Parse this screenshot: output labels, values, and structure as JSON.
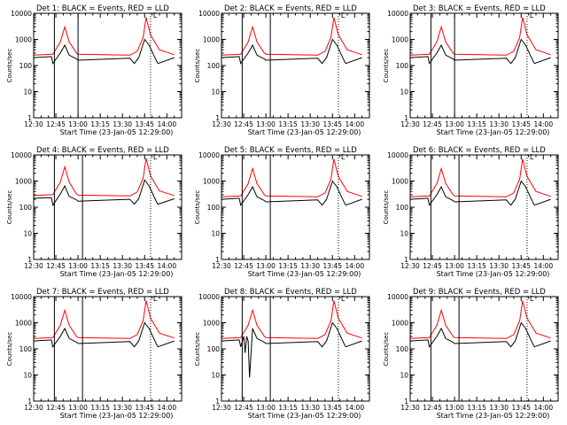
{
  "chart_data": [
    {
      "type": "line",
      "title": "Det 1:  BLACK = Events,  RED = LLD",
      "xlabel": "Start Time (23-Jan-05 12:29:00)",
      "ylabel": "Counts/sec",
      "xlim": [
        "12:30",
        "14:10"
      ],
      "ylim": [
        1,
        10000
      ],
      "y_scale": "log",
      "x_ticks": [
        "12:30",
        "12:45",
        "13:00",
        "13:15",
        "13:30",
        "13:45",
        "14:00"
      ],
      "y_ticks": [
        "1",
        "10",
        "100",
        "1000",
        "10000"
      ],
      "marker_lines": {
        "solid": [
          "12:44",
          "13:00"
        ],
        "dotted": [
          "13:49"
        ]
      },
      "legend_marker": "Ľ",
      "series": [
        {
          "name": "LLD",
          "color": "#ff0000",
          "x": [
            "12:30",
            "12:43",
            "12:48",
            "12:51",
            "12:54",
            "12:59",
            "13:00",
            "13:35",
            "13:40",
            "13:44",
            "13:46",
            "13:49",
            "13:55",
            "14:05"
          ],
          "values": [
            250,
            270,
            800,
            3000,
            800,
            300,
            270,
            250,
            350,
            1200,
            7000,
            1500,
            400,
            260
          ]
        },
        {
          "name": "Events",
          "color": "#000000",
          "x": [
            "12:30",
            "12:42",
            "12:43",
            "12:48",
            "12:51",
            "12:54",
            "12:59",
            "13:00",
            "13:35",
            "13:38",
            "13:41",
            "13:45",
            "13:48",
            "13:53",
            "13:54",
            "14:05"
          ],
          "values": [
            200,
            220,
            120,
            300,
            600,
            250,
            180,
            160,
            190,
            120,
            200,
            1000,
            600,
            150,
            120,
            200
          ]
        }
      ]
    },
    {
      "type": "line",
      "title": "Det 2:  BLACK = Events,  RED = LLD",
      "xlabel": "Start Time (23-Jan-05 12:29:00)",
      "ylabel": "Counts/sec",
      "xlim": [
        "12:30",
        "14:10"
      ],
      "ylim": [
        1,
        10000
      ],
      "y_scale": "log",
      "x_ticks": [
        "12:30",
        "12:45",
        "13:00",
        "13:15",
        "13:30",
        "13:45",
        "14:00"
      ],
      "y_ticks": [
        "1",
        "10",
        "100",
        "1000",
        "10000"
      ],
      "marker_lines": {
        "solid": [
          "12:44",
          "13:03"
        ],
        "dotted": [
          "13:49"
        ]
      },
      "legend_marker": "Ľ",
      "series": [
        {
          "name": "LLD",
          "color": "#ff0000",
          "x": [
            "12:30",
            "12:43",
            "12:48",
            "12:51",
            "12:54",
            "12:59",
            "13:00",
            "13:35",
            "13:40",
            "13:44",
            "13:46",
            "13:49",
            "13:55",
            "14:05"
          ],
          "values": [
            250,
            270,
            800,
            3000,
            800,
            300,
            270,
            250,
            350,
            1200,
            7000,
            1500,
            400,
            260
          ]
        },
        {
          "name": "Events",
          "color": "#000000",
          "x": [
            "12:30",
            "12:42",
            "12:43",
            "12:48",
            "12:51",
            "12:54",
            "12:59",
            "13:00",
            "13:35",
            "13:38",
            "13:41",
            "13:45",
            "13:48",
            "13:53",
            "13:54",
            "14:05"
          ],
          "values": [
            200,
            220,
            120,
            300,
            600,
            250,
            180,
            160,
            190,
            120,
            200,
            1000,
            600,
            150,
            120,
            200
          ]
        }
      ]
    },
    {
      "type": "line",
      "title": "Det 3:  BLACK = Events,  RED = LLD",
      "xlabel": "Start Time (23-Jan-05 12:29:00)",
      "ylabel": "Counts/sec",
      "xlim": [
        "12:30",
        "14:10"
      ],
      "ylim": [
        1,
        10000
      ],
      "y_scale": "log",
      "x_ticks": [
        "12:30",
        "12:45",
        "13:00",
        "13:15",
        "13:30",
        "13:45",
        "14:00"
      ],
      "y_ticks": [
        "1",
        "10",
        "100",
        "1000",
        "10000"
      ],
      "marker_lines": {
        "solid": [
          "12:44",
          "13:00"
        ],
        "dotted": [
          "13:49"
        ]
      },
      "legend_marker": "Ľ",
      "series": [
        {
          "name": "LLD",
          "color": "#ff0000",
          "x": [
            "12:30",
            "12:43",
            "12:48",
            "12:51",
            "12:54",
            "12:59",
            "13:00",
            "13:35",
            "13:40",
            "13:44",
            "13:46",
            "13:49",
            "13:55",
            "14:05"
          ],
          "values": [
            250,
            270,
            800,
            3000,
            800,
            300,
            270,
            250,
            350,
            1200,
            7000,
            1500,
            400,
            260
          ]
        },
        {
          "name": "Events",
          "color": "#000000",
          "x": [
            "12:30",
            "12:42",
            "12:43",
            "12:48",
            "12:51",
            "12:54",
            "12:59",
            "13:00",
            "13:35",
            "13:38",
            "13:41",
            "13:45",
            "13:48",
            "13:53",
            "13:54",
            "14:05"
          ],
          "values": [
            200,
            220,
            120,
            300,
            600,
            250,
            180,
            160,
            190,
            120,
            200,
            1000,
            600,
            150,
            120,
            200
          ]
        }
      ]
    },
    {
      "type": "line",
      "title": "Det 4:  BLACK = Events,  RED = LLD",
      "xlabel": "Start Time (23-Jan-05 12:29:00)",
      "ylabel": "Counts/sec",
      "xlim": [
        "12:30",
        "14:10"
      ],
      "ylim": [
        1,
        10000
      ],
      "y_scale": "log",
      "x_ticks": [
        "12:30",
        "12:45",
        "13:00",
        "13:15",
        "13:30",
        "13:45",
        "14:00"
      ],
      "y_ticks": [
        "1",
        "10",
        "100",
        "1000",
        "10000"
      ],
      "marker_lines": {
        "solid": [
          "12:44",
          "13:03"
        ],
        "dotted": [
          "13:49"
        ]
      },
      "legend_marker": "Ľ",
      "series": [
        {
          "name": "LLD",
          "color": "#ff0000",
          "x": [
            "12:30",
            "12:43",
            "12:48",
            "12:51",
            "12:54",
            "12:59",
            "13:00",
            "13:35",
            "13:40",
            "13:44",
            "13:46",
            "13:49",
            "13:55",
            "14:05"
          ],
          "values": [
            280,
            300,
            900,
            3500,
            900,
            320,
            290,
            270,
            380,
            1300,
            7500,
            1600,
            420,
            280
          ]
        },
        {
          "name": "Events",
          "color": "#000000",
          "x": [
            "12:30",
            "12:42",
            "12:43",
            "12:48",
            "12:51",
            "12:54",
            "12:59",
            "13:00",
            "13:35",
            "13:38",
            "13:41",
            "13:45",
            "13:48",
            "13:53",
            "13:54",
            "14:05"
          ],
          "values": [
            220,
            230,
            120,
            320,
            650,
            260,
            190,
            170,
            200,
            130,
            210,
            1100,
            650,
            160,
            130,
            210
          ]
        }
      ]
    },
    {
      "type": "line",
      "title": "Det 5:  BLACK = Events,  RED = LLD",
      "xlabel": "Start Time (23-Jan-05 12:29:00)",
      "ylabel": "Counts/sec",
      "xlim": [
        "12:30",
        "14:10"
      ],
      "ylim": [
        1,
        10000
      ],
      "y_scale": "log",
      "x_ticks": [
        "12:30",
        "12:45",
        "13:00",
        "13:15",
        "13:30",
        "13:45",
        "14:00"
      ],
      "y_ticks": [
        "1",
        "10",
        "100",
        "1000",
        "10000"
      ],
      "marker_lines": {
        "solid": [
          "12:44",
          "13:03"
        ],
        "dotted": [
          "13:49"
        ]
      },
      "legend_marker": "Ľ",
      "series": [
        {
          "name": "LLD",
          "color": "#ff0000",
          "x": [
            "12:30",
            "12:43",
            "12:48",
            "12:51",
            "12:54",
            "12:59",
            "13:00",
            "13:35",
            "13:40",
            "13:44",
            "13:46",
            "13:49",
            "13:55",
            "14:05"
          ],
          "values": [
            250,
            270,
            800,
            3000,
            800,
            300,
            270,
            250,
            350,
            1200,
            7000,
            1500,
            400,
            260
          ]
        },
        {
          "name": "Events",
          "color": "#000000",
          "x": [
            "12:30",
            "12:42",
            "12:43",
            "12:48",
            "12:51",
            "12:54",
            "12:59",
            "13:00",
            "13:35",
            "13:38",
            "13:41",
            "13:45",
            "13:48",
            "13:53",
            "13:54",
            "14:05"
          ],
          "values": [
            200,
            220,
            120,
            300,
            600,
            250,
            180,
            160,
            190,
            120,
            200,
            1000,
            600,
            150,
            120,
            200
          ]
        }
      ]
    },
    {
      "type": "line",
      "title": "Det 6:  BLACK = Events,  RED = LLD",
      "xlabel": "Start Time (23-Jan-05 12:29:00)",
      "ylabel": "Counts/sec",
      "xlim": [
        "12:30",
        "14:10"
      ],
      "ylim": [
        1,
        10000
      ],
      "y_scale": "log",
      "x_ticks": [
        "12:30",
        "12:45",
        "13:00",
        "13:15",
        "13:30",
        "13:45",
        "14:00"
      ],
      "y_ticks": [
        "1",
        "10",
        "100",
        "1000",
        "10000"
      ],
      "marker_lines": {
        "solid": [
          "12:44",
          "13:03"
        ],
        "dotted": [
          "13:49"
        ]
      },
      "legend_marker": "Ľ",
      "series": [
        {
          "name": "LLD",
          "color": "#ff0000",
          "x": [
            "12:30",
            "12:43",
            "12:48",
            "12:51",
            "12:54",
            "12:59",
            "13:00",
            "13:35",
            "13:40",
            "13:44",
            "13:46",
            "13:49",
            "13:55",
            "14:05"
          ],
          "values": [
            250,
            270,
            800,
            3000,
            800,
            300,
            270,
            250,
            350,
            1200,
            7000,
            1500,
            400,
            260
          ]
        },
        {
          "name": "Events",
          "color": "#000000",
          "x": [
            "12:30",
            "12:42",
            "12:43",
            "12:48",
            "12:51",
            "12:54",
            "12:59",
            "13:00",
            "13:35",
            "13:38",
            "13:41",
            "13:45",
            "13:48",
            "13:53",
            "13:54",
            "14:05"
          ],
          "values": [
            200,
            220,
            120,
            300,
            600,
            250,
            180,
            160,
            190,
            120,
            200,
            1000,
            600,
            150,
            120,
            200
          ]
        }
      ]
    },
    {
      "type": "line",
      "title": "Det 7:  BLACK = Events,  RED = LLD",
      "xlabel": "Start Time (23-Jan-05 12:29:00)",
      "ylabel": "Counts/sec",
      "xlim": [
        "12:30",
        "14:10"
      ],
      "ylim": [
        1,
        10000
      ],
      "y_scale": "log",
      "x_ticks": [
        "12:30",
        "12:45",
        "13:00",
        "13:15",
        "13:30",
        "13:45",
        "14:00"
      ],
      "y_ticks": [
        "1",
        "10",
        "100",
        "1000",
        "10000"
      ],
      "marker_lines": {
        "solid": [
          "12:44",
          "13:03"
        ],
        "dotted": [
          "13:49"
        ]
      },
      "legend_marker": "Ľ",
      "series": [
        {
          "name": "LLD",
          "color": "#ff0000",
          "x": [
            "12:30",
            "12:43",
            "12:48",
            "12:51",
            "12:54",
            "12:59",
            "13:00",
            "13:35",
            "13:40",
            "13:44",
            "13:46",
            "13:49",
            "13:55",
            "14:05"
          ],
          "values": [
            250,
            270,
            800,
            3000,
            800,
            300,
            270,
            250,
            350,
            1200,
            7000,
            1500,
            400,
            260
          ]
        },
        {
          "name": "Events",
          "color": "#000000",
          "x": [
            "12:30",
            "12:42",
            "12:43",
            "12:48",
            "12:51",
            "12:54",
            "12:59",
            "13:00",
            "13:35",
            "13:38",
            "13:41",
            "13:45",
            "13:48",
            "13:53",
            "13:54",
            "14:05"
          ],
          "values": [
            200,
            220,
            120,
            300,
            600,
            250,
            180,
            160,
            190,
            120,
            200,
            1000,
            600,
            150,
            120,
            200
          ]
        }
      ]
    },
    {
      "type": "line",
      "title": "Det 8:  BLACK = Events,  RED = LLD",
      "xlabel": "Start Time (23-Jan-05 12:29:00)",
      "ylabel": "Counts/sec",
      "xlim": [
        "12:30",
        "14:10"
      ],
      "ylim": [
        1,
        10000
      ],
      "y_scale": "log",
      "x_ticks": [
        "12:30",
        "12:45",
        "13:00",
        "13:15",
        "13:30",
        "13:45",
        "14:00"
      ],
      "y_ticks": [
        "1",
        "10",
        "100",
        "1000",
        "10000"
      ],
      "marker_lines": {
        "solid": [
          "12:44",
          "13:03"
        ],
        "dotted": [
          "13:49"
        ]
      },
      "legend_marker": "Ľ",
      "series": [
        {
          "name": "LLD",
          "color": "#ff0000",
          "x": [
            "12:30",
            "12:43",
            "12:48",
            "12:51",
            "12:54",
            "12:59",
            "13:00",
            "13:35",
            "13:40",
            "13:44",
            "13:46",
            "13:49",
            "13:55",
            "14:05"
          ],
          "values": [
            250,
            270,
            800,
            3000,
            800,
            300,
            270,
            250,
            350,
            1200,
            7000,
            1500,
            400,
            260
          ]
        },
        {
          "name": "Events",
          "color": "#000000",
          "x": [
            "12:30",
            "12:42",
            "12:43",
            "12:45",
            "12:46",
            "12:47",
            "12:48",
            "12:49",
            "12:51",
            "12:54",
            "12:59",
            "13:00",
            "13:35",
            "13:38",
            "13:41",
            "13:45",
            "13:48",
            "13:53",
            "13:54",
            "14:05"
          ],
          "values": [
            200,
            220,
            120,
            300,
            70,
            300,
            200,
            8,
            600,
            250,
            180,
            160,
            190,
            120,
            200,
            1000,
            600,
            150,
            120,
            200
          ]
        }
      ]
    },
    {
      "type": "line",
      "title": "Det 9:  BLACK = Events,  RED = LLD",
      "xlabel": "Start Time (23-Jan-05 12:29:00)",
      "ylabel": "Counts/sec",
      "xlim": [
        "12:30",
        "14:10"
      ],
      "ylim": [
        1,
        10000
      ],
      "y_scale": "log",
      "x_ticks": [
        "12:30",
        "12:45",
        "13:00",
        "13:15",
        "13:30",
        "13:45",
        "14:00"
      ],
      "y_ticks": [
        "1",
        "10",
        "100",
        "1000",
        "10000"
      ],
      "marker_lines": {
        "solid": [
          "12:44",
          "13:03"
        ],
        "dotted": [
          "13:49"
        ]
      },
      "legend_marker": "Ľ",
      "series": [
        {
          "name": "LLD",
          "color": "#ff0000",
          "x": [
            "12:30",
            "12:43",
            "12:48",
            "12:51",
            "12:54",
            "12:59",
            "13:00",
            "13:35",
            "13:40",
            "13:44",
            "13:46",
            "13:49",
            "13:55",
            "14:05"
          ],
          "values": [
            250,
            270,
            800,
            3000,
            800,
            300,
            270,
            250,
            350,
            1200,
            7000,
            1500,
            400,
            260
          ]
        },
        {
          "name": "Events",
          "color": "#000000",
          "x": [
            "12:30",
            "12:42",
            "12:43",
            "12:48",
            "12:51",
            "12:54",
            "12:59",
            "13:00",
            "13:35",
            "13:38",
            "13:41",
            "13:45",
            "13:48",
            "13:53",
            "13:54",
            "14:05"
          ],
          "values": [
            200,
            220,
            120,
            300,
            600,
            250,
            180,
            160,
            190,
            120,
            200,
            1000,
            600,
            150,
            120,
            200
          ]
        }
      ]
    }
  ]
}
